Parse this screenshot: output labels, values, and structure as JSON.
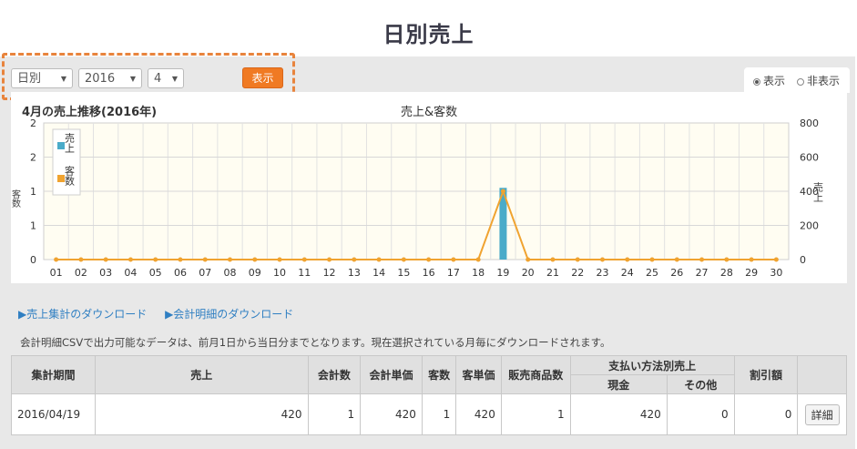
{
  "page": {
    "title": "日別売上"
  },
  "controls": {
    "period_select": "日別",
    "year_select": "2016",
    "month_select": "4",
    "show_button": "表示",
    "toggle_show": "表示",
    "toggle_hide": "非表示"
  },
  "chart_header": {
    "title": "4月の売上推移(2016年)",
    "center_title": "売上&客数"
  },
  "chart_data": {
    "type": "bar",
    "categories": [
      "01",
      "02",
      "03",
      "04",
      "05",
      "06",
      "07",
      "08",
      "09",
      "10",
      "11",
      "12",
      "13",
      "14",
      "15",
      "16",
      "17",
      "18",
      "19",
      "20",
      "21",
      "22",
      "23",
      "24",
      "25",
      "26",
      "27",
      "28",
      "29",
      "30"
    ],
    "series": [
      {
        "name": "売上",
        "type": "bar",
        "axis": "right",
        "color": "#4aabc9",
        "values": [
          0,
          0,
          0,
          0,
          0,
          0,
          0,
          0,
          0,
          0,
          0,
          0,
          0,
          0,
          0,
          0,
          0,
          0,
          420,
          0,
          0,
          0,
          0,
          0,
          0,
          0,
          0,
          0,
          0,
          0
        ]
      },
      {
        "name": "客数",
        "type": "line",
        "axis": "left",
        "color": "#f0a330",
        "values": [
          0,
          0,
          0,
          0,
          0,
          0,
          0,
          0,
          0,
          0,
          0,
          0,
          0,
          0,
          0,
          0,
          0,
          0,
          1,
          0,
          0,
          0,
          0,
          0,
          0,
          0,
          0,
          0,
          0,
          0
        ]
      }
    ],
    "left_axis": {
      "label": "客数",
      "ticks": [
        "0",
        "1",
        "1",
        "2",
        "2"
      ],
      "ylim": [
        0,
        2
      ]
    },
    "right_axis": {
      "label": "売上",
      "ticks": [
        "0",
        "200",
        "400",
        "600",
        "800"
      ],
      "ylim": [
        0,
        800
      ]
    },
    "grid": true,
    "legend": "top-left"
  },
  "downloads": {
    "summary_link": "▶売上集計のダウンロード",
    "detail_link": "▶会計明細のダウンロード",
    "note": "会計明細CSVで出力可能なデータは、前月1日から当日分までとなります。現在選択されている月毎にダウンロードされます。"
  },
  "table": {
    "headers": {
      "period": "集計期間",
      "sales": "売上",
      "count": "会計数",
      "unit_price": "会計単価",
      "customers": "客数",
      "customer_price": "客単価",
      "items": "販売商品数",
      "payment_group": "支払い方法別売上",
      "cash": "現金",
      "other": "その他",
      "discount": "割引額"
    },
    "row": {
      "period": "2016/04/19",
      "sales": "420",
      "count": "1",
      "unit_price": "420",
      "customers": "1",
      "customer_price": "420",
      "items": "1",
      "cash": "420",
      "other": "0",
      "discount": "0",
      "detail_button": "詳細"
    }
  }
}
